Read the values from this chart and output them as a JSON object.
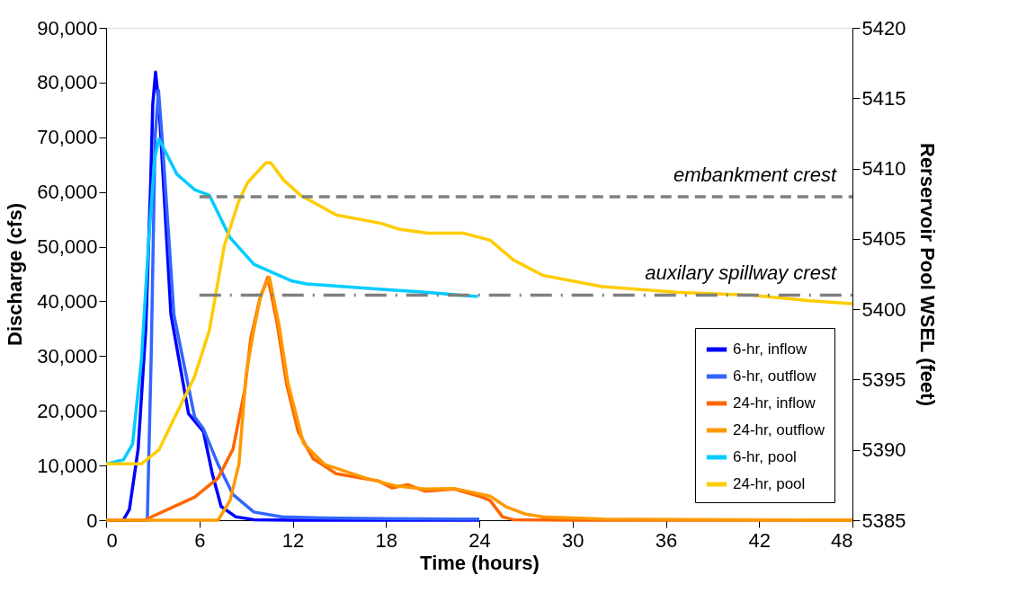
{
  "chart_data": {
    "type": "line",
    "xlabel": "Time (hours)",
    "ylabel": "Discharge (cfs)",
    "y2label": "Rerservoir Pool WSEL (feet)",
    "xlim": [
      0,
      48
    ],
    "xticks": [
      0,
      6,
      12,
      18,
      24,
      30,
      36,
      42,
      48
    ],
    "ylim": [
      0,
      90000
    ],
    "yticks": [
      {
        "value": 0,
        "label": "0"
      },
      {
        "value": 10000,
        "label": "10,000"
      },
      {
        "value": 20000,
        "label": "20,000"
      },
      {
        "value": 30000,
        "label": "30,000"
      },
      {
        "value": 40000,
        "label": "40,000"
      },
      {
        "value": 50000,
        "label": "50,000"
      },
      {
        "value": 60000,
        "label": "60,000"
      },
      {
        "value": 70000,
        "label": "70,000"
      },
      {
        "value": 80000,
        "label": "80,000"
      },
      {
        "value": 90000,
        "label": "90,000"
      }
    ],
    "y2lim": [
      5385,
      5420
    ],
    "y2ticks": [
      5385,
      5390,
      5395,
      5400,
      5405,
      5410,
      5415,
      5420
    ],
    "grid": false,
    "legend": "bottom right",
    "marker": "none",
    "series": [
      {
        "name": "6-hr, inflow",
        "color": "#0000ff",
        "line_style": "solid",
        "x": [
          0,
          1.1,
          1.5,
          2.06,
          2.55,
          2.87,
          3.0,
          3.18,
          3.4,
          4.17,
          5.3,
          6.26,
          6.83,
          7.4,
          8.35,
          9.5,
          12,
          18,
          24
        ],
        "values": [
          0,
          0,
          2000,
          13000,
          34800,
          62000,
          76000,
          81900,
          76000,
          37600,
          19500,
          16200,
          8500,
          2500,
          600,
          100,
          0,
          0,
          0
        ]
      },
      {
        "name": "6-hr, outflow",
        "color": "#3366ff",
        "line_style": "solid",
        "x": [
          0,
          2.65,
          2.9,
          3.15,
          3.37,
          3.6,
          4.36,
          5.69,
          6.26,
          7.2,
          8.16,
          9.5,
          11.3,
          14,
          18,
          24
        ],
        "values": [
          0,
          0,
          30000,
          70000,
          78600,
          70000,
          37600,
          18900,
          16700,
          10200,
          4700,
          1500,
          600,
          400,
          300,
          200
        ]
      },
      {
        "name": "24-hr, inflow",
        "color": "#ff6600",
        "line_style": "solid",
        "x": [
          0,
          2.45,
          3.98,
          5.69,
          7.2,
          8.16,
          8.92,
          9.3,
          9.87,
          10.4,
          11.0,
          11.6,
          12.35,
          13.3,
          14.8,
          17.5,
          18.4,
          19.4,
          20.5,
          22.4,
          24.0,
          24.7,
          25.5,
          26.2,
          30,
          36,
          42,
          48
        ],
        "values": [
          0,
          0,
          2000,
          4200,
          7700,
          13000,
          23900,
          33200,
          40300,
          44400,
          36000,
          25000,
          16200,
          11300,
          8500,
          7200,
          5900,
          6500,
          5300,
          5700,
          4400,
          3600,
          600,
          100,
          0,
          0,
          0,
          0
        ]
      },
      {
        "name": "24-hr, outflow",
        "color": "#ff9900",
        "line_style": "solid",
        "x": [
          0,
          7.2,
          7.97,
          8.54,
          9.0,
          9.5,
          9.97,
          10.5,
          11.1,
          11.7,
          12.7,
          14.06,
          16.7,
          18.6,
          20.5,
          22.4,
          24.7,
          25.7,
          27.0,
          28.1,
          32,
          48
        ],
        "values": [
          0,
          0,
          3600,
          10200,
          26600,
          34800,
          41400,
          44400,
          36000,
          25000,
          14000,
          10200,
          7700,
          6300,
          5700,
          5800,
          4400,
          2500,
          1100,
          600,
          200,
          0
        ]
      },
      {
        "name": "6-hr, pool",
        "color": "#00ccff",
        "line_style": "solid",
        "axis": "y2",
        "x": [
          0,
          1.12,
          1.7,
          2.27,
          2.74,
          3.12,
          3.4,
          4.55,
          5.69,
          6.64,
          7.97,
          9.5,
          11.96,
          12.9,
          16.7,
          20.5,
          23.9
        ],
        "values": [
          5389.0,
          5389.3,
          5390.4,
          5396.4,
          5404.9,
          5410.7,
          5412.1,
          5409.6,
          5408.5,
          5408.1,
          5405.1,
          5403.2,
          5402.0,
          5401.8,
          5401.5,
          5401.2,
          5400.9
        ]
      },
      {
        "name": "24-hr, pool",
        "color": "#ffcc00",
        "line_style": "solid",
        "axis": "y2",
        "x": [
          0,
          2.26,
          3.4,
          4.36,
          5.69,
          6.64,
          7.6,
          8.54,
          9.1,
          10.26,
          10.6,
          11.4,
          12.5,
          14.8,
          17.7,
          18.8,
          20.7,
          23.0,
          24.7,
          26.2,
          28.1,
          31.9,
          36.7,
          41.5,
          45.3,
          48
        ],
        "values": [
          5389.0,
          5389.0,
          5390.0,
          5392.2,
          5395.2,
          5398.5,
          5404.5,
          5407.7,
          5409.0,
          5410.4,
          5410.4,
          5409.2,
          5408.1,
          5406.7,
          5406.1,
          5405.7,
          5405.4,
          5405.4,
          5404.9,
          5403.5,
          5402.4,
          5401.6,
          5401.2,
          5401.0,
          5400.6,
          5400.4
        ]
      },
      {
        "color": "#808080",
        "line_style": "dashed",
        "axis": "y2",
        "x": [
          6,
          48
        ],
        "values": [
          5408,
          5408
        ]
      },
      {
        "color": "#808080",
        "line_style": "dashdot",
        "axis": "y2",
        "x": [
          6,
          48
        ],
        "values": [
          5401,
          5401
        ]
      }
    ],
    "annotations": [
      "embankment crest",
      "auxilary spillway crest"
    ]
  }
}
